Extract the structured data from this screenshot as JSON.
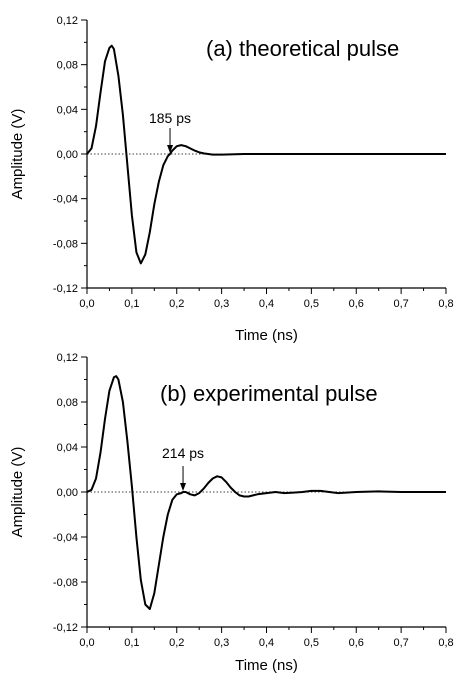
{
  "chart_data": [
    {
      "type": "line",
      "title": "(a) theoretical pulse",
      "xlabel": "Time (ns)",
      "ylabel": "Amplitude (V)",
      "xlim": [
        0.0,
        0.8
      ],
      "ylim": [
        -0.12,
        0.12
      ],
      "x_ticks": [
        "0,0",
        "0,1",
        "0,2",
        "0,3",
        "0,4",
        "0,5",
        "0,6",
        "0,7",
        "0,8"
      ],
      "y_ticks": [
        "0,12",
        "0,08",
        "0,04",
        "0,00",
        "-0,04",
        "-0,08",
        "-0,12"
      ],
      "zero_line": "dotted",
      "annotation": {
        "text": "185 ps",
        "x": 0.185
      },
      "series": [
        {
          "x": [
            0.0,
            0.01,
            0.02,
            0.03,
            0.04,
            0.05,
            0.055,
            0.06,
            0.07,
            0.08,
            0.09,
            0.1,
            0.11,
            0.12,
            0.13,
            0.14,
            0.15,
            0.16,
            0.17,
            0.18,
            0.185,
            0.19,
            0.2,
            0.21,
            0.22,
            0.23,
            0.24,
            0.25,
            0.26,
            0.27,
            0.28,
            0.3,
            0.35,
            0.4,
            0.5,
            0.6,
            0.7,
            0.8
          ],
          "y": [
            0.0,
            0.005,
            0.025,
            0.055,
            0.083,
            0.095,
            0.097,
            0.094,
            0.07,
            0.035,
            -0.01,
            -0.055,
            -0.088,
            -0.098,
            -0.09,
            -0.07,
            -0.045,
            -0.025,
            -0.01,
            -0.002,
            0.0,
            0.003,
            0.007,
            0.008,
            0.007,
            0.005,
            0.003,
            0.0015,
            0.0005,
            0.0,
            -0.0005,
            -0.0005,
            0.0,
            0.0,
            0.0,
            0.0,
            0.0,
            0.0
          ]
        }
      ]
    },
    {
      "type": "line",
      "title": "(b) experimental pulse",
      "xlabel": "Time (ns)",
      "ylabel": "Amplitude (V)",
      "xlim": [
        0.0,
        0.8
      ],
      "ylim": [
        -0.12,
        0.12
      ],
      "x_ticks": [
        "0,0",
        "0,1",
        "0,2",
        "0,3",
        "0,4",
        "0,5",
        "0,6",
        "0,7",
        "0,8"
      ],
      "y_ticks": [
        "0,12",
        "0,08",
        "0,04",
        "0,00",
        "-0,04",
        "-0,08",
        "-0,12"
      ],
      "zero_line": "dotted",
      "annotation": {
        "text": "214 ps",
        "x": 0.214
      },
      "series": [
        {
          "x": [
            0.0,
            0.01,
            0.02,
            0.03,
            0.04,
            0.05,
            0.06,
            0.065,
            0.07,
            0.08,
            0.09,
            0.1,
            0.11,
            0.12,
            0.13,
            0.14,
            0.15,
            0.16,
            0.17,
            0.18,
            0.19,
            0.2,
            0.21,
            0.214,
            0.22,
            0.23,
            0.24,
            0.25,
            0.26,
            0.27,
            0.28,
            0.29,
            0.3,
            0.31,
            0.32,
            0.33,
            0.34,
            0.35,
            0.36,
            0.37,
            0.38,
            0.4,
            0.42,
            0.44,
            0.46,
            0.48,
            0.5,
            0.52,
            0.54,
            0.56,
            0.6,
            0.65,
            0.7,
            0.75,
            0.8
          ],
          "y": [
            0.0,
            0.002,
            0.012,
            0.035,
            0.065,
            0.09,
            0.102,
            0.103,
            0.1,
            0.08,
            0.045,
            0.005,
            -0.04,
            -0.078,
            -0.1,
            -0.104,
            -0.09,
            -0.065,
            -0.04,
            -0.02,
            -0.007,
            -0.002,
            -0.001,
            0.0,
            0.0,
            -0.002,
            -0.003,
            -0.001,
            0.003,
            0.008,
            0.012,
            0.014,
            0.013,
            0.009,
            0.004,
            0.0,
            -0.003,
            -0.004,
            -0.004,
            -0.003,
            -0.002,
            -0.001,
            0.0,
            -0.001,
            -0.0005,
            0.0,
            0.001,
            0.001,
            0.0,
            -0.001,
            0.0,
            0.0005,
            0.0,
            0.0,
            0.0
          ]
        }
      ]
    }
  ]
}
